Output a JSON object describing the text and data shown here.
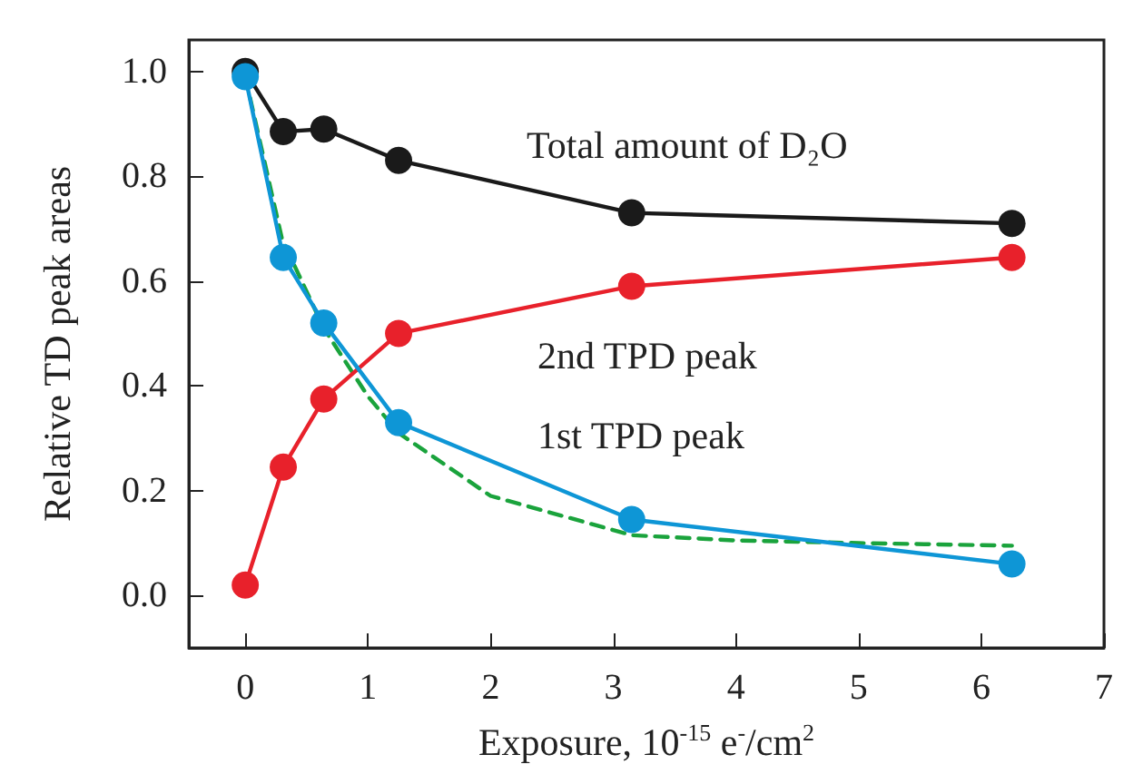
{
  "chart_data": {
    "type": "line",
    "xlabel": "Exposure, 10$^{-15}$ e$^{-}$/cm$^{2}$",
    "ylabel": "Relative TD peak areas",
    "xlim": [
      -0.46,
      7
    ],
    "xticks": [
      0,
      1,
      2,
      3,
      4,
      5,
      6,
      7
    ],
    "ylim": [
      -0.1,
      1.06
    ],
    "yticks": [
      {
        "value": 0,
        "label": "0.0"
      },
      0.2,
      0.4,
      0.6,
      0.8,
      {
        "value": 1,
        "label": "1.0"
      }
    ],
    "grid": false,
    "legend": false,
    "marker": "circle",
    "line_style": "solid",
    "x": [
      0,
      0.31,
      0.64,
      1.25,
      3.15,
      6.25
    ],
    "series": [
      {
        "name": "Total amount of D₂O",
        "color": "#1a1a1a",
        "values": [
          1.0,
          0.885,
          0.89,
          0.83,
          0.73,
          0.71
        ]
      },
      {
        "name": "2nd TPD peak",
        "color": "#e8212b",
        "values": [
          0.02,
          0.245,
          0.375,
          0.5,
          0.59,
          0.645
        ]
      },
      {
        "name": "1st TPD peak",
        "color": "#0e96d6",
        "values": [
          0.99,
          0.645,
          0.52,
          0.33,
          0.145,
          0.06
        ]
      },
      {
        "type": "line",
        "color": "#1aa33c",
        "marker": "none",
        "line_style": "dashed",
        "x": [
          0,
          0.3,
          0.64,
          1.0,
          1.25,
          2.0,
          3.15,
          4.0,
          5.0,
          6.25
        ],
        "values": [
          0.99,
          0.68,
          0.51,
          0.38,
          0.31,
          0.19,
          0.115,
          0.105,
          0.1,
          0.095
        ]
      }
    ]
  }
}
